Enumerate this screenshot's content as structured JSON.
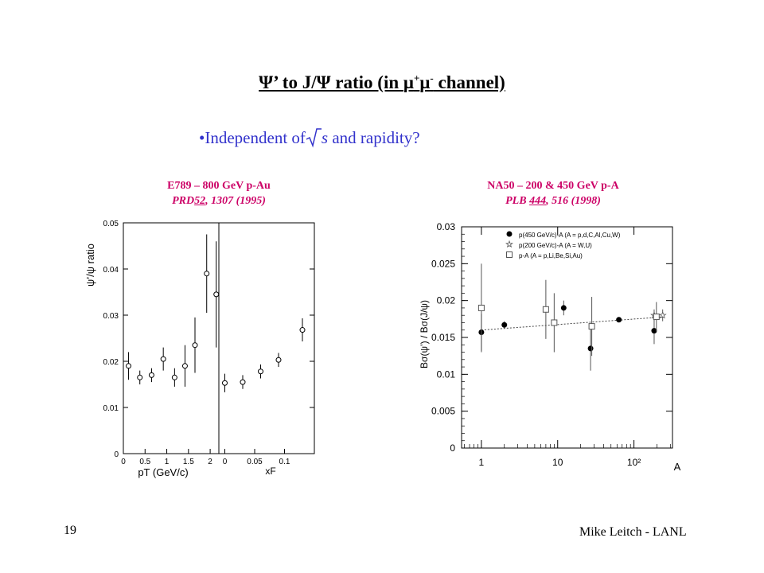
{
  "slide": {
    "title_prefix": "Ψ’ to J/Ψ ratio (in ",
    "title_mu": "μ",
    "title_plus": "+",
    "title_minus": "-",
    "title_suffix": " channel)",
    "bullet_mark": "•",
    "bullet_pre": "Independent of",
    "bullet_s": "s",
    "bullet_post": " and rapidity?",
    "page_number": "19",
    "author": "Mike Leitch - LANL"
  },
  "left_caption": {
    "line1": "E789 – 800 GeV p-Au",
    "line2_a": "PRD",
    "line2_vol": "52",
    "line2_b": ", 1307 (1995)"
  },
  "right_caption": {
    "line1": "NA50 – 200 & 450 GeV p-A",
    "line2_a": "PLB ",
    "line2_vol": "444",
    "line2_b": ", 516 (1998)"
  },
  "chart_data": [
    {
      "type": "scatter",
      "ylabel": "ψ’/ψ ratio",
      "xlabel": "pT (GeV/c)",
      "ylim": [
        0,
        0.05
      ],
      "xlim": [
        0,
        2.2
      ],
      "yticks": [
        "0",
        "0.01",
        "0.02",
        "0.03",
        "0.04",
        "0.05"
      ],
      "xticks": [
        "0",
        "0.5",
        "1",
        "1.5",
        "2"
      ],
      "points": [
        {
          "x": 0.12,
          "y": 0.019,
          "err": 0.003
        },
        {
          "x": 0.38,
          "y": 0.0165,
          "err": 0.0015
        },
        {
          "x": 0.65,
          "y": 0.017,
          "err": 0.0015
        },
        {
          "x": 0.92,
          "y": 0.0205,
          "err": 0.0025
        },
        {
          "x": 1.18,
          "y": 0.0165,
          "err": 0.002
        },
        {
          "x": 1.42,
          "y": 0.019,
          "err": 0.0045
        },
        {
          "x": 1.65,
          "y": 0.0235,
          "err": 0.006
        },
        {
          "x": 1.92,
          "y": 0.039,
          "err": 0.0085
        },
        {
          "x": 2.14,
          "y": 0.0345,
          "err": 0.0115
        }
      ]
    },
    {
      "type": "scatter",
      "xlabel": "xF",
      "ylim": [
        0,
        0.05
      ],
      "xlim": [
        -0.01,
        0.15
      ],
      "xticks": [
        "0",
        "0.05",
        "0.1"
      ],
      "points": [
        {
          "x": 0.0,
          "y": 0.0153,
          "err": 0.002
        },
        {
          "x": 0.03,
          "y": 0.0155,
          "err": 0.0015
        },
        {
          "x": 0.06,
          "y": 0.0178,
          "err": 0.0015
        },
        {
          "x": 0.09,
          "y": 0.0203,
          "err": 0.0015
        },
        {
          "x": 0.13,
          "y": 0.0268,
          "err": 0.0025
        }
      ]
    },
    {
      "type": "scatter",
      "ylabel": "Bσ(ψ’) / Bσ(J/ψ)",
      "xlabel": "A",
      "log_x": true,
      "ylim": [
        0,
        0.03
      ],
      "xlim": [
        0.55,
        320
      ],
      "yticks": [
        "0",
        "0.005",
        "0.01",
        "0.015",
        "0.02",
        "0.025",
        "0.03"
      ],
      "xticks": [
        "1",
        "10",
        "10²"
      ],
      "legend": [
        {
          "label": "p(450 GeV/c)-A (A = p,d,C,Al,Cu,W)",
          "marker": "filled-circle"
        },
        {
          "label": "p(200 GeV/c)-A (A = W,U)",
          "marker": "star"
        },
        {
          "label": "p-A (A = p,Li,Be,Si,Au)",
          "marker": "open-square"
        }
      ],
      "series": [
        {
          "marker": "filled-circle",
          "points": [
            {
              "x": 1,
              "y": 0.0157,
              "err": 0.0025
            },
            {
              "x": 2,
              "y": 0.0167,
              "err": 0.0005
            },
            {
              "x": 12,
              "y": 0.019,
              "err": 0.001
            },
            {
              "x": 27,
              "y": 0.0135,
              "err": 0.003
            },
            {
              "x": 63.5,
              "y": 0.0174,
              "err": 0.0003
            },
            {
              "x": 184,
              "y": 0.0159,
              "err": 0.0018
            }
          ]
        },
        {
          "marker": "star",
          "points": [
            {
              "x": 184,
              "y": 0.018,
              "err": 0.0008
            },
            {
              "x": 238,
              "y": 0.018,
              "err": 0.0008
            }
          ]
        },
        {
          "marker": "open-square",
          "points": [
            {
              "x": 1,
              "y": 0.019,
              "err": 0.006
            },
            {
              "x": 7,
              "y": 0.0188,
              "err": 0.004
            },
            {
              "x": 9,
              "y": 0.017,
              "err": 0.004
            },
            {
              "x": 28,
              "y": 0.0165,
              "err": 0.004
            },
            {
              "x": 197,
              "y": 0.0178,
              "err": 0.002
            }
          ]
        }
      ],
      "fit_line": {
        "from": {
          "x": 1,
          "y": 0.016
        },
        "to": {
          "x": 260,
          "y": 0.0178
        }
      }
    }
  ]
}
